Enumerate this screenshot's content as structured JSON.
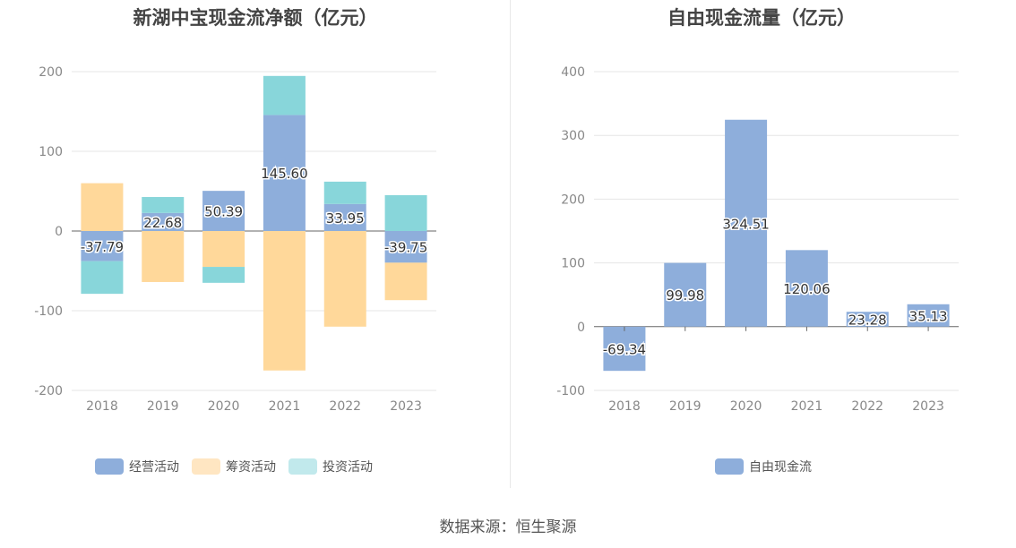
{
  "chart_data": [
    {
      "type": "bar",
      "stacked": true,
      "title": "新湖中宝现金流净额（亿元）",
      "categories": [
        "2018",
        "2019",
        "2020",
        "2021",
        "2022",
        "2023"
      ],
      "series": [
        {
          "name": "经营活动",
          "color": "#8eaedb",
          "values": [
            -37.79,
            22.68,
            50.39,
            145.6,
            33.95,
            -39.75
          ],
          "labels": [
            "-37.79",
            "22.68",
            "50.39",
            "145.60",
            "33.95",
            "-39.75"
          ]
        },
        {
          "name": "筹资活动",
          "color": "#ffd89a",
          "values": [
            60,
            -64,
            -45,
            -175,
            -120,
            -47
          ]
        },
        {
          "name": "投资活动",
          "color": "#88d6da",
          "values": [
            -41,
            20,
            -20,
            49,
            28,
            45
          ]
        }
      ],
      "yticks": [
        "200",
        "100",
        "0",
        "-100",
        "-200"
      ],
      "ylim": [
        -200,
        200
      ],
      "legend": "bottom-center"
    },
    {
      "type": "bar",
      "title": "自由现金流量（亿元）",
      "categories": [
        "2018",
        "2019",
        "2020",
        "2021",
        "2022",
        "2023"
      ],
      "series": [
        {
          "name": "自由现金流",
          "color": "#8eaedb",
          "values": [
            -69.34,
            99.98,
            324.51,
            120.06,
            23.28,
            35.13
          ],
          "labels": [
            "-69.34",
            "99.98",
            "324.51",
            "120.06",
            "23.28",
            "35.13"
          ]
        }
      ],
      "yticks": [
        "400",
        "300",
        "200",
        "100",
        "0",
        "-100"
      ],
      "ylim": [
        -100,
        400
      ],
      "legend": "bottom-center"
    }
  ],
  "legend_left": [
    {
      "name": "经营活动",
      "color": "#8eaedb"
    },
    {
      "name": "筹资活动",
      "color": "#ffe6c2"
    },
    {
      "name": "投资活动",
      "color": "#c1e9ec"
    }
  ],
  "legend_right": [
    {
      "name": "自由现金流",
      "color": "#8eaedb"
    }
  ],
  "footer": {
    "source": "数据来源：恒生聚源"
  }
}
